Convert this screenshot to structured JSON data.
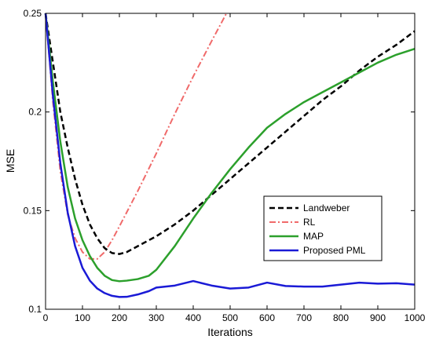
{
  "chart_data": {
    "type": "line",
    "xlabel": "Iterations",
    "ylabel": "MSE",
    "xlim": [
      0,
      1000
    ],
    "ylim": [
      0.1,
      0.25
    ],
    "xticks": [
      "0",
      "100",
      "200",
      "300",
      "400",
      "500",
      "600",
      "700",
      "800",
      "900",
      "1000"
    ],
    "yticks": [
      "0.1",
      "0.15",
      "0.2",
      "0.25"
    ],
    "grid": false,
    "legend_position": "lower-right",
    "series": [
      {
        "name": "Landweber",
        "color": "#000000",
        "dash": "dashed",
        "x": [
          0,
          20,
          40,
          60,
          80,
          100,
          120,
          140,
          160,
          180,
          200,
          220,
          240,
          260,
          300,
          350,
          400,
          450,
          500,
          550,
          600,
          650,
          700,
          750,
          800,
          850,
          900,
          950,
          1000
        ],
        "y": [
          0.25,
          0.225,
          0.2,
          0.182,
          0.166,
          0.153,
          0.143,
          0.136,
          0.131,
          0.1285,
          0.128,
          0.129,
          0.131,
          0.133,
          0.137,
          0.143,
          0.15,
          0.158,
          0.166,
          0.174,
          0.182,
          0.19,
          0.198,
          0.206,
          0.213,
          0.221,
          0.228,
          0.234,
          0.241
        ]
      },
      {
        "name": "RL",
        "color": "#f06a6a",
        "dash": "dashdot",
        "x": [
          0,
          20,
          40,
          60,
          80,
          100,
          120,
          140,
          160,
          180,
          200,
          250,
          300,
          350,
          400,
          450,
          490
        ],
        "y": [
          0.25,
          0.205,
          0.17,
          0.148,
          0.136,
          0.129,
          0.1255,
          0.1255,
          0.129,
          0.135,
          0.142,
          0.16,
          0.179,
          0.199,
          0.218,
          0.236,
          0.25
        ]
      },
      {
        "name": "MAP",
        "color": "#2ca02c",
        "dash": "solid",
        "x": [
          0,
          20,
          40,
          60,
          80,
          100,
          120,
          140,
          160,
          180,
          200,
          220,
          250,
          280,
          300,
          350,
          400,
          450,
          500,
          550,
          600,
          650,
          700,
          750,
          800,
          850,
          900,
          950,
          1000
        ],
        "y": [
          0.25,
          0.215,
          0.185,
          0.162,
          0.146,
          0.135,
          0.127,
          0.121,
          0.117,
          0.1148,
          0.1142,
          0.1145,
          0.1153,
          0.117,
          0.12,
          0.132,
          0.146,
          0.159,
          0.171,
          0.182,
          0.192,
          0.199,
          0.205,
          0.21,
          0.215,
          0.22,
          0.225,
          0.229,
          0.232
        ]
      },
      {
        "name": "Proposed PML",
        "color": "#1a1ad6",
        "dash": "solid",
        "x": [
          0,
          20,
          40,
          60,
          80,
          100,
          120,
          140,
          160,
          180,
          200,
          220,
          250,
          280,
          300,
          350,
          400,
          450,
          500,
          550,
          600,
          650,
          700,
          750,
          800,
          850,
          900,
          950,
          1000
        ],
        "y": [
          0.25,
          0.208,
          0.174,
          0.149,
          0.132,
          0.121,
          0.1145,
          0.1105,
          0.1082,
          0.1068,
          0.1062,
          0.1063,
          0.1075,
          0.1092,
          0.111,
          0.112,
          0.1143,
          0.112,
          0.1105,
          0.111,
          0.1135,
          0.1118,
          0.1115,
          0.1115,
          0.1125,
          0.1135,
          0.113,
          0.1132,
          0.1125
        ]
      }
    ]
  }
}
